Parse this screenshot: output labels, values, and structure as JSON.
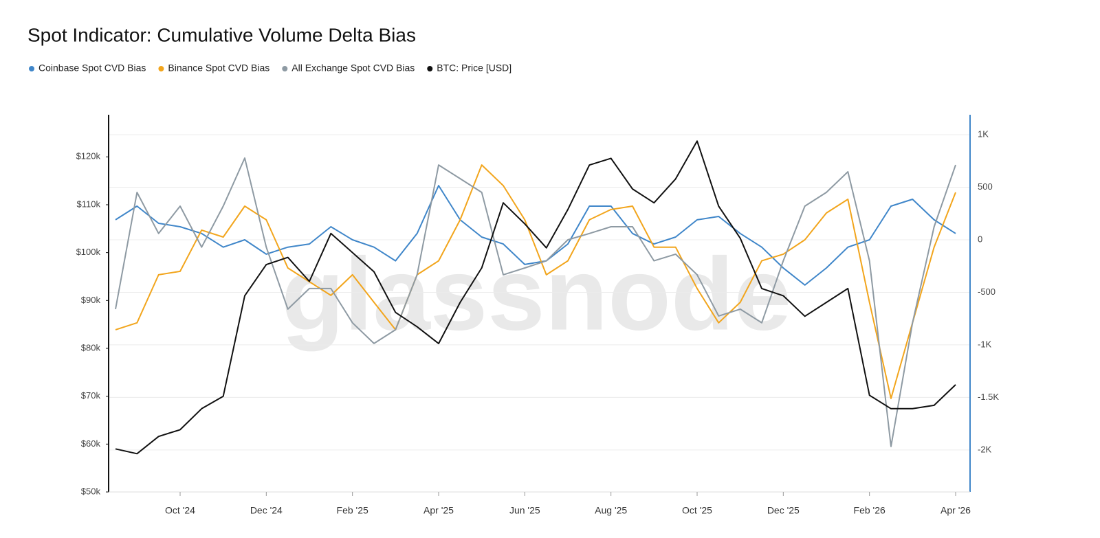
{
  "chart_data": {
    "type": "line",
    "title": "Spot Indicator: Cumulative Volume Delta Bias",
    "watermark": "glassnode",
    "categories": [
      null,
      null,
      null,
      "Oct '24",
      null,
      null,
      null,
      "Dec '24",
      null,
      null,
      null,
      "Feb '25",
      null,
      null,
      null,
      "Apr '25",
      null,
      null,
      null,
      "Jun '25",
      null,
      null,
      null,
      "Aug '25",
      null,
      null,
      null,
      "Oct '25",
      null,
      null,
      null,
      "Dec '25",
      null,
      null,
      null,
      "Feb '26",
      null,
      null,
      null,
      "Apr '26"
    ],
    "ylim": [
      50000,
      128800
    ],
    "yticks": [
      {
        "value": 50000,
        "label": "$50k"
      },
      {
        "value": 60000,
        "label": "$60k"
      },
      {
        "value": 70000,
        "label": "$70k"
      },
      {
        "value": 80000,
        "label": "$80k"
      },
      {
        "value": 90000,
        "label": "$90k"
      },
      {
        "value": 100000,
        "label": "$100k"
      },
      {
        "value": 110000,
        "label": "$110k"
      },
      {
        "value": 120000,
        "label": "$120k"
      }
    ],
    "y2lim": [
      -2400,
      1190
    ],
    "y2ticks": [
      {
        "value": -2000,
        "label": "-2K"
      },
      {
        "value": -1500,
        "label": "-1.5K"
      },
      {
        "value": -1000,
        "label": "-1K"
      },
      -500,
      0,
      500,
      {
        "value": 1000,
        "label": "1K"
      }
    ],
    "grid": true,
    "series": [
      {
        "name": "Coinbase Spot CVD Bias",
        "color": "#3f86c9",
        "axis": "y2",
        "values": [
          190,
          320,
          157,
          124,
          60,
          -70,
          0,
          -137,
          -70,
          -40,
          124,
          0,
          -70,
          -200,
          60,
          516,
          190,
          26,
          -40,
          -235,
          -200,
          -40,
          320,
          320,
          60,
          -40,
          26,
          190,
          222,
          60,
          -70,
          -268,
          -431,
          -268,
          -70,
          0,
          320,
          386,
          190,
          60
        ]
      },
      {
        "name": "Binance Spot CVD Bias",
        "color": "#f2a51c",
        "axis": "y2",
        "values": [
          -856,
          -790,
          -333,
          -300,
          92,
          26,
          320,
          190,
          -268,
          -399,
          -529,
          -333,
          -595,
          -856,
          -333,
          -200,
          190,
          712,
          516,
          190,
          -333,
          -200,
          190,
          288,
          320,
          -70,
          -70,
          -464,
          -790,
          -595,
          -200,
          -137,
          0,
          255,
          386,
          -595,
          -1510,
          -790,
          -70,
          451
        ]
      },
      {
        "name": "All Exchange Spot CVD Bias",
        "color": "#8e9aa3",
        "axis": "y2",
        "values": [
          -660,
          451,
          60,
          320,
          -70,
          320,
          778,
          -70,
          -660,
          -464,
          -464,
          -790,
          -987,
          -856,
          -333,
          712,
          582,
          451,
          -333,
          -268,
          -200,
          0,
          60,
          124,
          124,
          -200,
          -137,
          -333,
          -725,
          -660,
          -790,
          -200,
          320,
          451,
          647,
          -200,
          -1967,
          -790,
          124,
          712
        ]
      },
      {
        "name": "BTC: Price [USD]",
        "color": "#111111",
        "axis": "y",
        "values": [
          59000,
          58000,
          61600,
          63000,
          67400,
          70000,
          91000,
          97500,
          99000,
          94000,
          104000,
          100000,
          96000,
          87500,
          84500,
          81000,
          89600,
          96800,
          110400,
          106000,
          101000,
          109000,
          118300,
          119700,
          113300,
          110400,
          115400,
          123300,
          109700,
          103000,
          92500,
          91000,
          86700,
          89600,
          92500,
          70200,
          67400,
          67400,
          68100,
          72400
        ]
      }
    ]
  }
}
